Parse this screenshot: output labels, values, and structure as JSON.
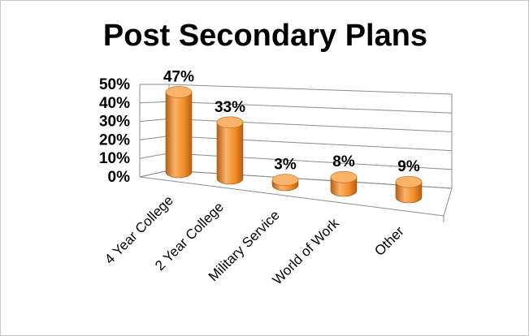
{
  "chart_data": {
    "type": "bar",
    "style": "3d-cylinder",
    "title": "Post Secondary Plans",
    "categories": [
      "4 Year College",
      "2 Year College",
      "Military Service",
      "World of Work",
      "Other"
    ],
    "values": [
      47,
      33,
      3,
      8,
      9
    ],
    "data_labels": [
      "47%",
      "33%",
      "3%",
      "8%",
      "9%"
    ],
    "y_ticks": [
      "0%",
      "10%",
      "20%",
      "30%",
      "40%",
      "50%"
    ],
    "ylim": [
      0,
      50
    ],
    "grid": true,
    "legend": "none",
    "colors": {
      "bar": "#f28c28",
      "bar_light": "#f9b36a",
      "bar_dark": "#b85f12",
      "grid": "#8c8c8c"
    }
  }
}
